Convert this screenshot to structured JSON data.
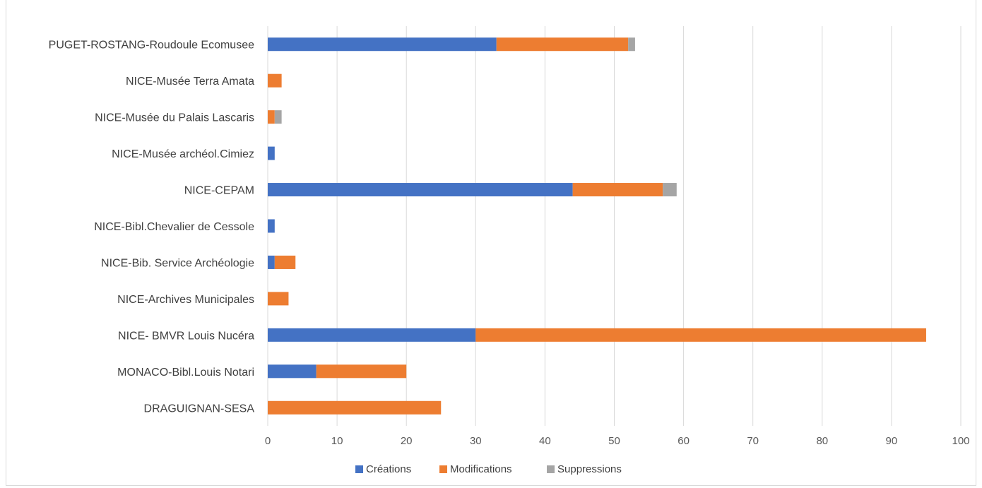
{
  "chart_data": {
    "type": "bar",
    "orientation": "horizontal",
    "stacked": true,
    "title": "",
    "categories": [
      "PUGET-ROSTANG-Roudoule Ecomusee",
      "NICE-Musée Terra Amata",
      "NICE-Musée du Palais Lascaris",
      "NICE-Musée archéol.Cimiez",
      "NICE-CEPAM",
      "NICE-Bibl.Chevalier de Cessole",
      "NICE-Bib. Service Archéologie",
      "NICE-Archives Municipales",
      "NICE- BMVR Louis Nucéra",
      "MONACO-Bibl.Louis Notari",
      "DRAGUIGNAN-SESA"
    ],
    "series": [
      {
        "name": "Créations",
        "color": "#4472c4",
        "values": [
          33,
          0,
          0,
          1,
          44,
          1,
          1,
          0,
          30,
          7,
          0
        ]
      },
      {
        "name": "Modifications",
        "color": "#ed7d31",
        "values": [
          19,
          2,
          1,
          0,
          13,
          0,
          3,
          3,
          65,
          13,
          25
        ]
      },
      {
        "name": "Suppressions",
        "color": "#a5a5a5",
        "values": [
          1,
          0,
          1,
          0,
          2,
          0,
          0,
          0,
          0,
          0,
          0
        ]
      }
    ],
    "xlim": [
      0,
      100
    ],
    "xticks": [
      0,
      10,
      20,
      30,
      40,
      50,
      60,
      70,
      80,
      90,
      100
    ],
    "grid": "vertical",
    "legend_position": "bottom"
  }
}
